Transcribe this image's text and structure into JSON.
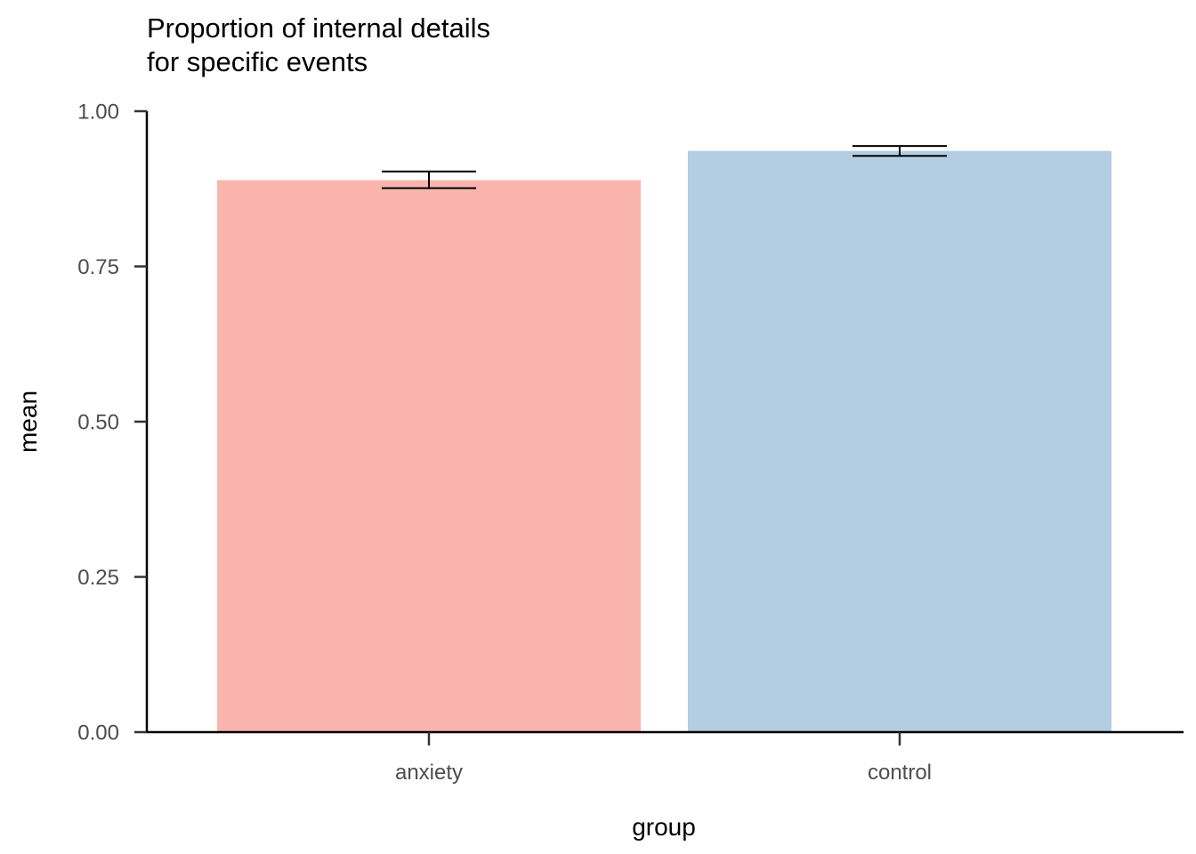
{
  "chart_data": {
    "type": "bar",
    "title_lines": [
      "Proportion of internal details",
      "for specific events"
    ],
    "xlabel": "group",
    "ylabel": "mean",
    "categories": [
      "anxiety",
      "control"
    ],
    "values": [
      0.889,
      0.936
    ],
    "error_bars": [
      {
        "lower": 0.876,
        "upper": 0.903
      },
      {
        "lower": 0.928,
        "upper": 0.944
      }
    ],
    "colors": [
      "#F9B4AE",
      "#B3CDE2"
    ],
    "ylim": [
      0,
      1
    ],
    "y_ticks": [
      0,
      0.25,
      0.5,
      0.75,
      1
    ],
    "y_tick_labels": [
      "0.00",
      "0.25",
      "0.50",
      "0.75",
      "1.00"
    ],
    "grid": false,
    "legend": "none"
  }
}
